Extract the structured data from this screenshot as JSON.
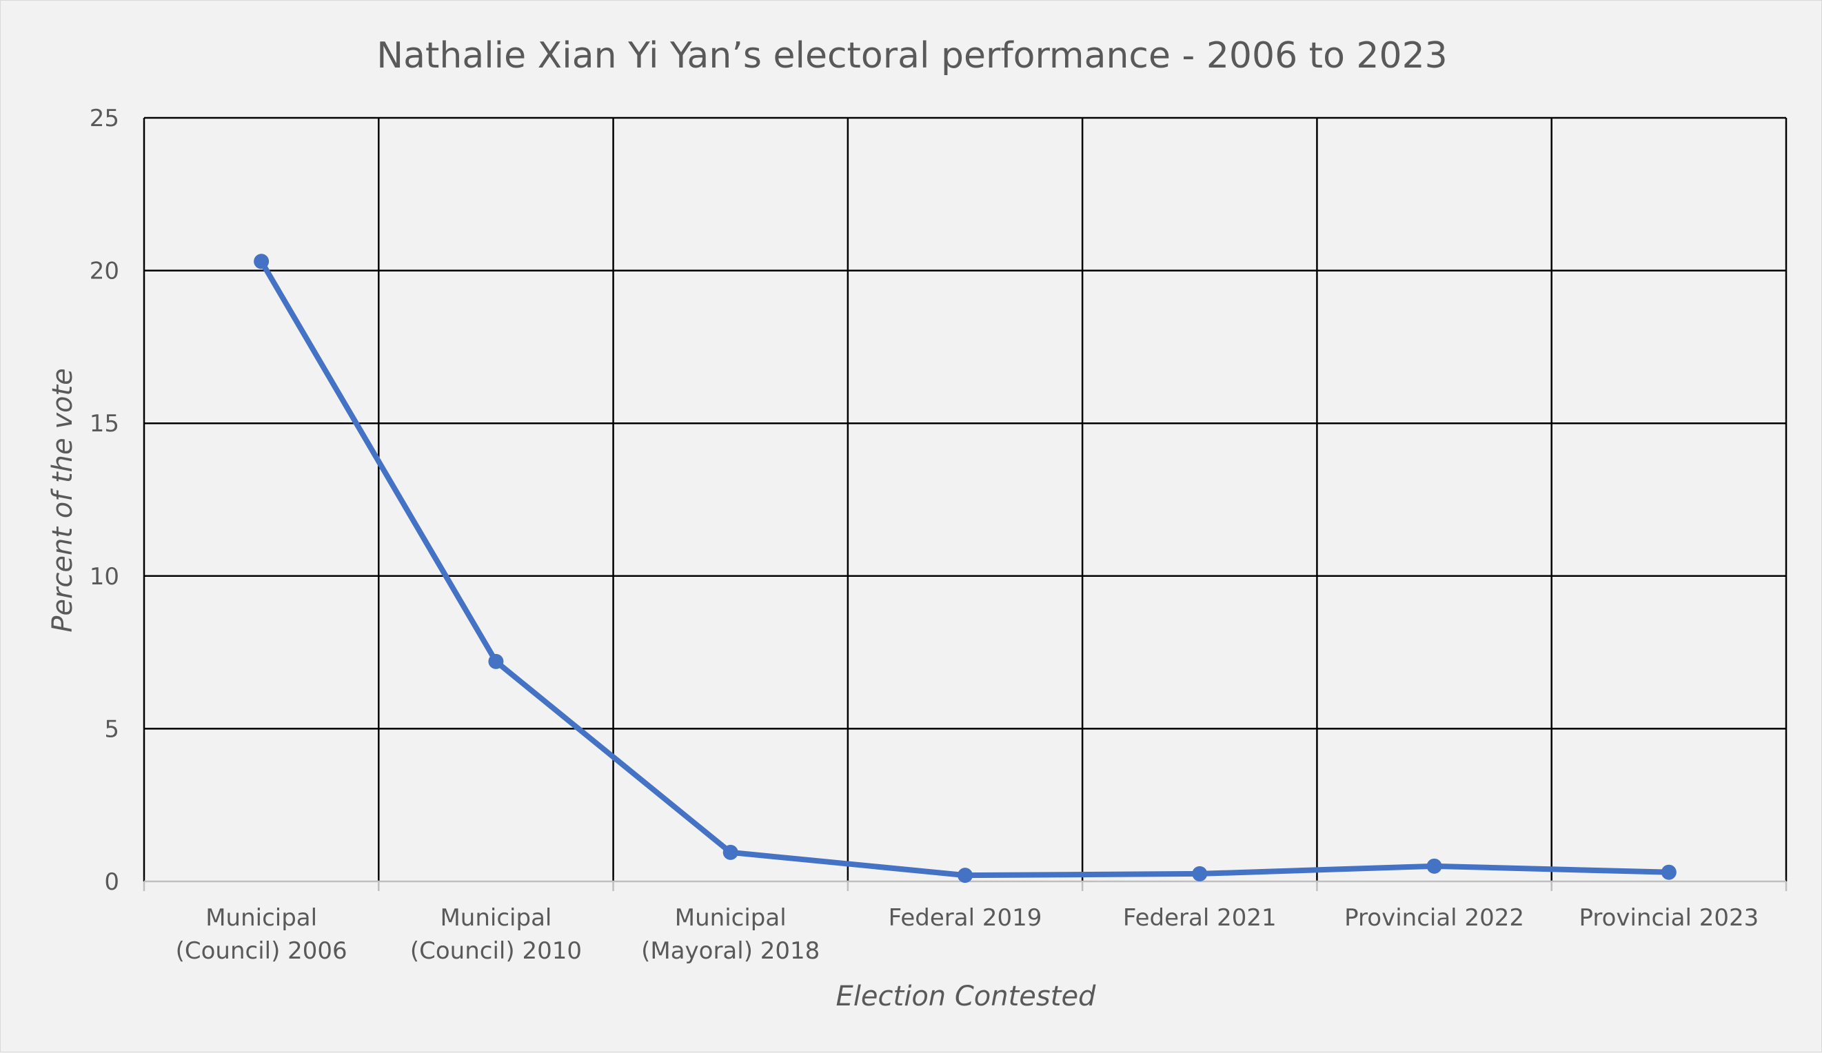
{
  "chart_data": {
    "type": "line",
    "title": "Nathalie Xian Yi Yan’s electoral performance - 2006 to 2023",
    "xlabel": "Election Contested",
    "ylabel": "Percent of the vote",
    "categories": [
      [
        "Municipal",
        "(Council) 2006"
      ],
      [
        "Municipal",
        "(Council) 2010"
      ],
      [
        "Municipal",
        "(Mayoral) 2018"
      ],
      [
        "Federal 2019"
      ],
      [
        "Federal 2021"
      ],
      [
        "Provincial 2022"
      ],
      [
        "Provincial 2023"
      ]
    ],
    "series": [
      {
        "values": [
          20.3,
          7.2,
          0.95,
          0.2,
          0.25,
          0.5,
          0.3
        ],
        "color": "#4472c4"
      }
    ],
    "ylim": [
      0,
      25
    ],
    "yticks": [
      "0",
      "5",
      "10",
      "15",
      "20",
      "25"
    ],
    "grid": true,
    "legend": "none"
  }
}
